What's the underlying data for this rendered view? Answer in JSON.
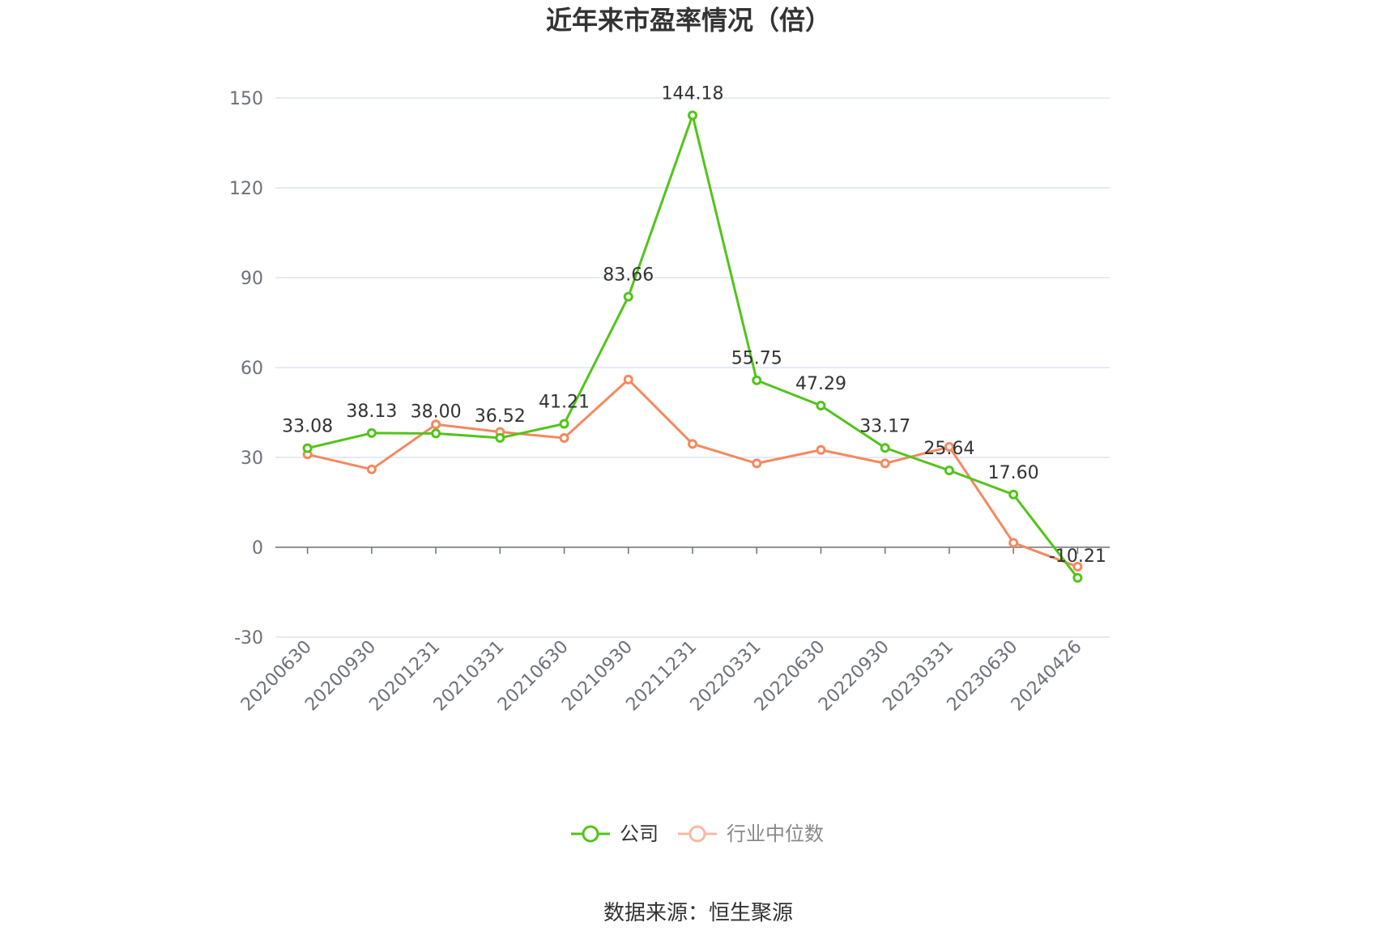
{
  "chart_data": {
    "type": "line",
    "title": "近年来市盈率情况（倍）",
    "categories": [
      "20200630",
      "20200930",
      "20201231",
      "20210331",
      "20210630",
      "20210930",
      "20211231",
      "20220331",
      "20220630",
      "20220930",
      "20230331",
      "20230630",
      "20240426"
    ],
    "series": [
      {
        "name": "公司",
        "color": "#52c41a",
        "values": [
          33.08,
          38.13,
          38.0,
          36.52,
          41.21,
          83.66,
          144.18,
          55.75,
          47.29,
          33.17,
          25.64,
          17.6,
          -10.21
        ],
        "labels": [
          "33.08",
          "38.13",
          "38.00",
          "36.52",
          "41.21",
          "83.66",
          "144.18",
          "55.75",
          "47.29",
          "33.17",
          "25.64",
          "17.60",
          "-10.21"
        ]
      },
      {
        "name": "行业中位数",
        "color": "#f4895f",
        "values": [
          31.0,
          26.0,
          41.0,
          38.5,
          36.5,
          56.0,
          34.5,
          28.0,
          32.5,
          28.0,
          33.5,
          1.5,
          -6.5
        ]
      }
    ],
    "ylim": [
      -30,
      150
    ],
    "yticks": [
      -30,
      0,
      30,
      60,
      90,
      120,
      150
    ],
    "ytick_labels": [
      "-30",
      "0",
      "30",
      "60",
      "90",
      "120",
      "150"
    ],
    "grid": true,
    "legend_position": "bottom"
  },
  "source_text": "数据来源：恒生聚源"
}
